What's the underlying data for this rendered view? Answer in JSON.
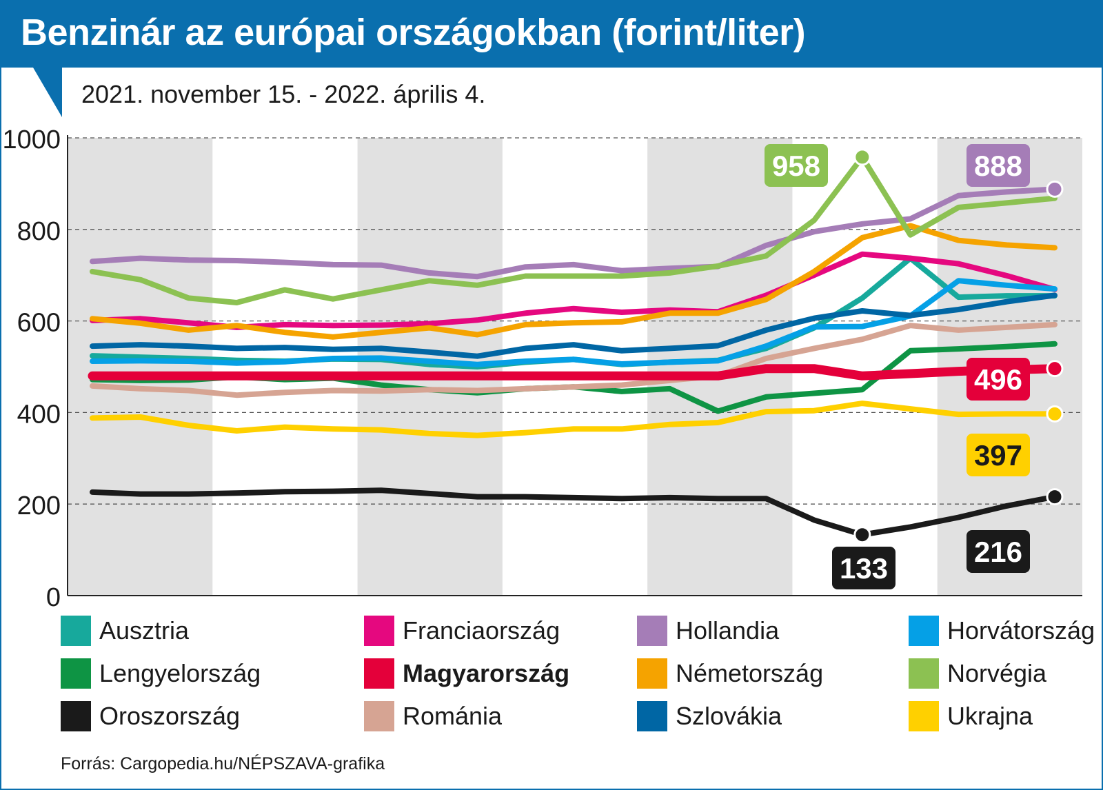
{
  "title": "Benzinár az európai országokban (forint/liter)",
  "subtitle": "2021. november 15. - 2022. április 4.",
  "source": "Forrás: Cargopedia.hu/NÉPSZAVA-grafika",
  "colors": {
    "brand": "#0a6fae",
    "band": "#e1e1e1"
  },
  "chart_data": {
    "type": "line",
    "title": "Benzinár az európai országokban (forint/liter)",
    "subtitle": "2021. november 15. - 2022. április 4.",
    "xlabel": "",
    "ylabel": "",
    "ylim": [
      0,
      1000
    ],
    "yticks": [
      "0",
      "200",
      "400",
      "600",
      "800",
      "1000"
    ],
    "ytick_values": [
      0,
      200,
      400,
      600,
      800,
      1000
    ],
    "grid": true,
    "legend_position": "bottom",
    "series": [
      {
        "name": "Ausztria",
        "color": "#17a99c",
        "values": [
          524,
          521,
          518,
          514,
          512,
          517,
          516,
          505,
          500,
          510,
          516,
          505,
          510,
          514,
          540,
          585,
          650,
          737,
          652,
          655,
          655
        ]
      },
      {
        "name": "Franciaország",
        "color": "#e5087f",
        "values": [
          601,
          605,
          596,
          586,
          592,
          590,
          591,
          594,
          602,
          617,
          627,
          619,
          624,
          620,
          656,
          700,
          746,
          737,
          725,
          699,
          669
        ]
      },
      {
        "name": "Hollandia",
        "color": "#a57db7",
        "values": [
          730,
          737,
          733,
          732,
          728,
          723,
          722,
          705,
          697,
          718,
          723,
          710,
          715,
          719,
          765,
          795,
          812,
          823,
          874,
          882,
          888
        ]
      },
      {
        "name": "Horvátország",
        "color": "#05a0e6",
        "values": [
          512,
          513,
          512,
          508,
          511,
          518,
          519,
          512,
          505,
          512,
          516,
          506,
          510,
          513,
          545,
          587,
          588,
          611,
          688,
          678,
          670
        ]
      },
      {
        "name": "Lengyelország",
        "color": "#0e9444",
        "values": [
          472,
          470,
          471,
          478,
          472,
          475,
          460,
          450,
          443,
          452,
          456,
          446,
          452,
          403,
          434,
          442,
          450,
          535,
          539,
          544,
          550
        ]
      },
      {
        "name": "Magyarország",
        "color": "#e4003a",
        "values": [
          480,
          480,
          480,
          480,
          480,
          480,
          480,
          480,
          480,
          480,
          480,
          480,
          480,
          480,
          496,
          496,
          480,
          485,
          490,
          493,
          496
        ]
      },
      {
        "name": "Németország",
        "color": "#f5a300",
        "values": [
          605,
          595,
          580,
          590,
          575,
          565,
          575,
          585,
          570,
          592,
          596,
          598,
          617,
          617,
          647,
          708,
          782,
          808,
          776,
          766,
          760
        ]
      },
      {
        "name": "Norvégia",
        "color": "#8cc152",
        "values": [
          708,
          690,
          650,
          640,
          668,
          648,
          668,
          688,
          678,
          698,
          698,
          698,
          705,
          720,
          742,
          820,
          958,
          788,
          848,
          858,
          868
        ]
      },
      {
        "name": "Oroszország",
        "color": "#1a1a1a",
        "values": [
          226,
          222,
          222,
          224,
          227,
          228,
          230,
          223,
          216,
          216,
          214,
          212,
          214,
          212,
          212,
          165,
          133,
          150,
          171,
          196,
          216
        ]
      },
      {
        "name": "Románia",
        "color": "#d6a493",
        "values": [
          458,
          452,
          448,
          438,
          444,
          448,
          447,
          450,
          448,
          452,
          456,
          460,
          470,
          480,
          518,
          540,
          560,
          590,
          580,
          586,
          592
        ]
      },
      {
        "name": "Szlovákia",
        "color": "#0066a4",
        "values": [
          545,
          548,
          545,
          540,
          542,
          538,
          540,
          532,
          523,
          540,
          548,
          535,
          540,
          546,
          580,
          606,
          622,
          612,
          625,
          642,
          656
        ]
      },
      {
        "name": "Ukrajna",
        "color": "#ffd000",
        "values": [
          388,
          390,
          372,
          360,
          368,
          364,
          362,
          354,
          350,
          356,
          364,
          364,
          374,
          378,
          402,
          404,
          420,
          408,
          396,
          397,
          397
        ]
      }
    ],
    "annotations": [
      {
        "series": "Norvégia",
        "point": 16,
        "label": "958",
        "marker": true
      },
      {
        "series": "Hollandia",
        "point": 20,
        "label": "888",
        "marker": true
      },
      {
        "series": "Magyarország",
        "point": 20,
        "label": "496",
        "marker": true
      },
      {
        "series": "Ukrajna",
        "point": 20,
        "label": "397",
        "marker": true
      },
      {
        "series": "Oroszország",
        "point": 16,
        "label": "133",
        "marker": true
      },
      {
        "series": "Oroszország",
        "point": 20,
        "label": "216",
        "marker": true
      }
    ]
  }
}
